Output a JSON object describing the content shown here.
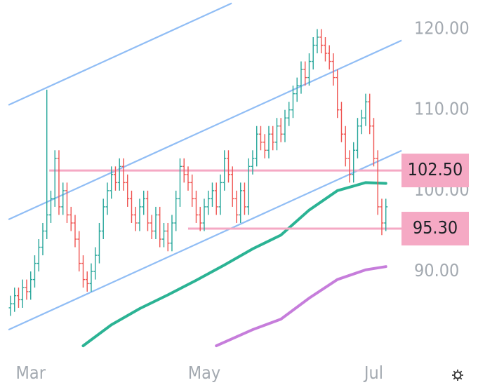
{
  "chart_data": {
    "type": "ohlc",
    "categories": [
      null,
      null,
      null,
      null,
      null,
      "Mar",
      null,
      null,
      null,
      null,
      null,
      null,
      null,
      null,
      null,
      null,
      null,
      null,
      null,
      null,
      null,
      null,
      null,
      null,
      null,
      null,
      null,
      null,
      null,
      null,
      null,
      null,
      null,
      null,
      null,
      null,
      null,
      null,
      null,
      null,
      null,
      null,
      null,
      null,
      null,
      null,
      null,
      null,
      "May",
      null,
      null,
      null,
      null,
      null,
      null,
      null,
      null,
      null,
      null,
      null,
      null,
      null,
      null,
      null,
      null,
      null,
      null,
      null,
      null,
      null,
      null,
      null,
      null,
      null,
      null,
      null,
      null,
      null,
      null,
      null,
      null,
      null,
      null,
      null,
      null,
      null,
      null,
      null,
      null,
      null,
      "Jul",
      null,
      null,
      null
    ],
    "open": [
      85.5,
      86,
      87,
      86.5,
      88,
      87.5,
      89,
      91,
      93,
      95,
      97,
      99,
      104,
      98,
      100,
      97,
      96,
      94,
      91,
      89,
      88.5,
      90,
      92,
      95,
      98,
      100,
      102,
      101,
      103,
      101,
      99,
      97,
      96,
      98,
      99,
      96,
      95,
      97,
      94,
      95,
      93.5,
      96,
      99,
      103,
      102,
      101,
      99,
      97,
      96,
      98,
      99,
      100,
      98,
      101,
      104,
      102,
      99,
      97,
      100,
      98,
      103,
      104,
      107,
      106,
      105,
      107,
      106,
      108,
      107,
      109,
      110,
      112,
      113,
      115,
      114,
      116,
      118,
      119,
      118,
      117,
      116,
      114,
      110,
      107,
      104,
      102,
      105,
      108,
      109,
      111,
      108,
      104,
      98,
      96
    ],
    "high": [
      87,
      88,
      88,
      89,
      89,
      90,
      92,
      94,
      96,
      112.5,
      100,
      105,
      105,
      101,
      101,
      98,
      97,
      95,
      92,
      90,
      91,
      93,
      96,
      99,
      101,
      103,
      103,
      104,
      104,
      102,
      100,
      98,
      99,
      100,
      100,
      97,
      98,
      98,
      96,
      96,
      97,
      100,
      104,
      104,
      103,
      102,
      100,
      98,
      99,
      100,
      101,
      101,
      102,
      105,
      105,
      103,
      100,
      101,
      101,
      104,
      105,
      108,
      108,
      107,
      108,
      108,
      109,
      109,
      110,
      111,
      113,
      114,
      116,
      116,
      117,
      119,
      120,
      120,
      119,
      118,
      117,
      115,
      111,
      108,
      105,
      106,
      109,
      110,
      112,
      112,
      109,
      105,
      99,
      99
    ],
    "low": [
      84.5,
      85,
      85.5,
      85.5,
      86.5,
      86.5,
      88,
      90,
      92,
      94,
      96,
      98,
      97,
      97,
      96,
      95,
      93,
      90,
      88,
      87.5,
      87.5,
      89,
      91,
      94,
      97,
      99,
      100,
      100,
      100,
      98,
      96,
      95,
      95,
      97,
      95,
      94,
      94,
      93,
      93,
      92.5,
      92.5,
      95,
      98,
      101,
      100,
      98,
      96,
      95,
      95,
      97,
      98,
      97,
      97,
      100,
      101,
      98,
      96,
      96,
      97,
      97,
      102,
      103,
      105,
      104,
      104,
      105,
      105,
      106,
      106,
      108,
      109,
      111,
      112,
      113,
      113,
      115,
      117,
      117,
      116,
      115,
      113,
      109,
      106,
      103,
      101,
      101,
      104,
      107,
      108,
      107,
      103,
      97,
      94.5,
      95
    ],
    "close": [
      86,
      87,
      86.5,
      88,
      87.5,
      89,
      91,
      93,
      95,
      97,
      99,
      104,
      98,
      100,
      97,
      96,
      94,
      91,
      89,
      88.5,
      90,
      92,
      95,
      98,
      100,
      102,
      101,
      103,
      101,
      99,
      97,
      96,
      98,
      99,
      96,
      95,
      97,
      94,
      95,
      93.5,
      96,
      99,
      103,
      102,
      101,
      99,
      97,
      96,
      98,
      99,
      100,
      98,
      101,
      104,
      102,
      99,
      97,
      100,
      98,
      103,
      104,
      107,
      106,
      105,
      107,
      106,
      108,
      107,
      109,
      110,
      112,
      113,
      115,
      114,
      116,
      118,
      119,
      118,
      117,
      116,
      114,
      110,
      107,
      104,
      102,
      105,
      108,
      109,
      111,
      108,
      104,
      98,
      96,
      98
    ],
    "up_color": "#26a69a",
    "down_color": "#ef5350",
    "ylim": [
      80.2,
      123.6
    ],
    "yticks": [
      {
        "value": 120,
        "label": "120.00"
      },
      {
        "value": 110,
        "label": "110.00"
      },
      {
        "value": 100,
        "label": "100.00"
      },
      {
        "value": 90,
        "label": "90.00"
      }
    ],
    "channel_color": "#90bdf5",
    "channel": [
      {
        "start": [
          -0.5,
          110.6
        ],
        "end": [
          54.8,
          123.2
        ]
      },
      {
        "start": [
          -0.5,
          96.43
        ],
        "end": [
          96.9,
          118.6
        ]
      },
      {
        "start": [
          -0.5,
          82.78
        ],
        "end": [
          96.9,
          104.96
        ]
      }
    ],
    "level_color": "#f5a9c4",
    "levels": [
      {
        "value": 102.5,
        "label": "102.50",
        "start": 9.6
      },
      {
        "value": 95.3,
        "label": "95.30",
        "start": 44
      }
    ],
    "moving_averages": [
      {
        "color": "#2bb394",
        "x": [
          18,
          25,
          32,
          39,
          46,
          53,
          60,
          67,
          74,
          81,
          88,
          93
        ],
        "values": [
          80.8,
          83.4,
          85.4,
          87.1,
          88.9,
          90.8,
          92.8,
          94.5,
          97.6,
          100.0,
          101.0,
          100.9
        ]
      },
      {
        "color": "#c67ddb",
        "x": [
          51,
          60,
          67,
          74,
          81,
          88,
          93
        ],
        "values": [
          80.8,
          82.8,
          84.1,
          86.7,
          89.0,
          90.2,
          90.6
        ]
      }
    ]
  }
}
